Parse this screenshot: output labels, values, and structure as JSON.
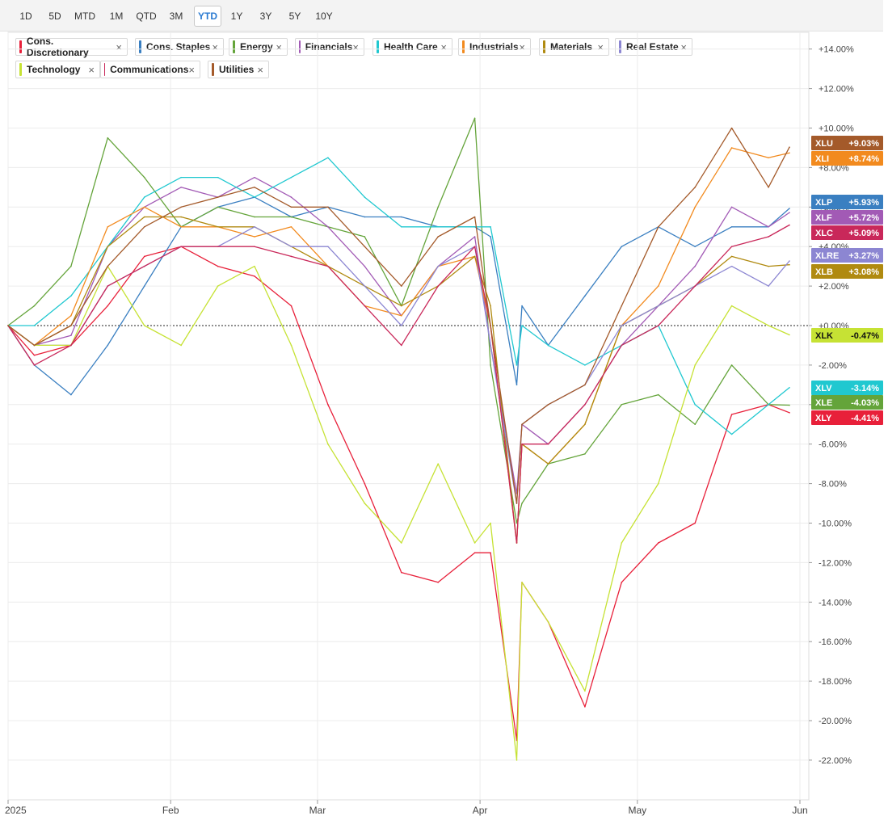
{
  "periods": [
    "1D",
    "5D",
    "MTD",
    "1M",
    "QTD",
    "3M",
    "YTD",
    "1Y",
    "3Y",
    "5Y",
    "10Y"
  ],
  "active_period": "YTD",
  "colors": {
    "XLY": "#e8203a",
    "XLP": "#3a7fc1",
    "XLE": "#64a43a",
    "XLF": "#a25ab5",
    "XLV": "#20c8d0",
    "XLI": "#f28a1e",
    "XLB": "#b08a10",
    "XLRE": "#8c86d2",
    "XLK": "#c6e234",
    "XLC": "#c9285a",
    "XLU": "#a45a2a"
  },
  "legend": [
    {
      "name": "Cons. Discretionary",
      "ticker": "XLY"
    },
    {
      "name": "Cons. Staples",
      "ticker": "XLP"
    },
    {
      "name": "Energy",
      "ticker": "XLE"
    },
    {
      "name": "Financials",
      "ticker": "XLF"
    },
    {
      "name": "Health Care",
      "ticker": "XLV"
    },
    {
      "name": "Industrials",
      "ticker": "XLI"
    },
    {
      "name": "Materials",
      "ticker": "XLB"
    },
    {
      "name": "Real Estate",
      "ticker": "XLRE"
    },
    {
      "name": "Technology",
      "ticker": "XLK"
    },
    {
      "name": "Communications",
      "ticker": "XLC"
    },
    {
      "name": "Utilities",
      "ticker": "XLU"
    }
  ],
  "legend_close_glyph": "×",
  "chart_data": {
    "type": "line",
    "title": "",
    "xlabel": "",
    "ylabel": "",
    "ylim": [
      -24,
      15
    ],
    "grid": true,
    "legend_position": "top-left",
    "y_ticks": [
      -22,
      -20,
      -18,
      -16,
      -14,
      -12,
      -10,
      -8,
      -6,
      -4,
      -2,
      0,
      2,
      4,
      6,
      8,
      10,
      12,
      14
    ],
    "y_tick_labels": [
      "-22.00%",
      "-20.00%",
      "-18.00%",
      "-16.00%",
      "-14.00%",
      "-12.00%",
      "-10.00%",
      "-8.00%",
      "-6.00%",
      "-4.00%",
      "-2.00%",
      "+0.00%",
      "+2.00%",
      "+4.00%",
      "+6.00%",
      "+8.00%",
      "+10.00%",
      "+12.00%",
      "+14.00%"
    ],
    "x_ticks": [
      {
        "date": "2025-01-01",
        "label": "2025"
      },
      {
        "date": "2025-02-01",
        "label": "Feb"
      },
      {
        "date": "2025-03-01",
        "label": "Mar"
      },
      {
        "date": "2025-04-01",
        "label": "Apr"
      },
      {
        "date": "2025-05-01",
        "label": "May"
      },
      {
        "date": "2025-06-01",
        "label": "Jun"
      }
    ],
    "x_range": [
      "2025-01-01",
      "2025-06-01"
    ],
    "dates": [
      "2025-01-01",
      "2025-01-06",
      "2025-01-13",
      "2025-01-20",
      "2025-01-27",
      "2025-02-03",
      "2025-02-10",
      "2025-02-17",
      "2025-02-24",
      "2025-03-03",
      "2025-03-10",
      "2025-03-17",
      "2025-03-24",
      "2025-03-31",
      "2025-04-03",
      "2025-04-08",
      "2025-04-09",
      "2025-04-14",
      "2025-04-21",
      "2025-04-28",
      "2025-05-05",
      "2025-05-12",
      "2025-05-19",
      "2025-05-26",
      "2025-05-30"
    ],
    "series": [
      {
        "ticker": "XLY",
        "name": "Cons. Discretionary",
        "values": [
          0,
          -1.5,
          -1,
          1,
          3.5,
          4,
          3,
          2.5,
          1,
          -4,
          -8,
          -12.5,
          -13,
          -11.5,
          -11.5,
          -21,
          -13,
          -15,
          -19.3,
          -13,
          -11,
          -10,
          -4.5,
          -4,
          -4.41
        ]
      },
      {
        "ticker": "XLP",
        "name": "Cons. Staples",
        "values": [
          0,
          -2,
          -3.5,
          -1,
          2,
          5,
          6,
          6.5,
          5.5,
          6,
          5.5,
          5.5,
          5,
          5,
          4.5,
          -3,
          1,
          -1,
          1.5,
          4,
          5,
          4,
          5,
          5,
          5.93
        ]
      },
      {
        "ticker": "XLE",
        "name": "Energy",
        "values": [
          0,
          1,
          3,
          9.5,
          7.5,
          5,
          6,
          5.5,
          5.5,
          5,
          4.5,
          1,
          6,
          10.5,
          -2,
          -10,
          -9,
          -7,
          -6.5,
          -4,
          -3.5,
          -5,
          -2,
          -4,
          -4.03
        ]
      },
      {
        "ticker": "XLF",
        "name": "Financials",
        "values": [
          0,
          -1,
          -0.5,
          4,
          6,
          7,
          6.5,
          7.5,
          6.5,
          5,
          3,
          0.5,
          3,
          4.5,
          -1,
          -8.5,
          -5,
          -6,
          -4,
          -1,
          1,
          3,
          6,
          5,
          5.72
        ]
      },
      {
        "ticker": "XLV",
        "name": "Health Care",
        "values": [
          0,
          0,
          1.5,
          4,
          6.5,
          7.5,
          7.5,
          6.5,
          7.5,
          8.5,
          6.5,
          5,
          5,
          5,
          5,
          -2,
          0,
          -1,
          -2,
          -1,
          0,
          -4,
          -5.5,
          -4,
          -3.14
        ]
      },
      {
        "ticker": "XLI",
        "name": "Industrials",
        "values": [
          0,
          -1,
          0.5,
          5,
          6,
          5,
          5,
          4.5,
          5,
          3,
          1,
          0.5,
          3,
          3.5,
          0,
          -11,
          -6,
          -7,
          -5,
          0,
          2,
          6,
          9,
          8.5,
          8.74
        ]
      },
      {
        "ticker": "XLB",
        "name": "Materials",
        "values": [
          0,
          -1,
          0,
          4,
          5.5,
          5.5,
          5,
          5,
          4,
          3,
          2,
          1,
          2,
          3.5,
          1,
          -11,
          -6,
          -7,
          -5,
          0,
          1,
          2,
          3.5,
          3,
          3.08
        ]
      },
      {
        "ticker": "XLRE",
        "name": "Real Estate",
        "values": [
          0,
          -1,
          -1,
          2,
          3,
          4,
          4,
          5,
          4,
          4,
          2,
          0,
          3,
          4,
          -1,
          -9,
          -5,
          -4,
          -3,
          0,
          1,
          2,
          3,
          2,
          3.27
        ]
      },
      {
        "ticker": "XLK",
        "name": "Technology",
        "values": [
          0,
          -1,
          -1,
          3,
          0,
          -1,
          2,
          3,
          -1,
          -6,
          -9,
          -11,
          -7,
          -11,
          -10,
          -22,
          -13,
          -15,
          -18.5,
          -11,
          -8,
          -2,
          1,
          0,
          -0.47
        ]
      },
      {
        "ticker": "XLC",
        "name": "Communications",
        "values": [
          0,
          -2,
          -1,
          2,
          3,
          4,
          4,
          4,
          3.5,
          3,
          1,
          -1,
          2,
          4,
          0,
          -11,
          -6,
          -6,
          -4,
          -1,
          0,
          2,
          4,
          4.5,
          5.09
        ]
      },
      {
        "ticker": "XLU",
        "name": "Utilities",
        "values": [
          0,
          -1,
          0,
          3,
          5,
          6,
          6.5,
          7,
          6,
          6,
          4,
          2,
          4.5,
          5.5,
          0,
          -9,
          -5,
          -4,
          -3,
          1,
          5,
          7,
          10,
          7,
          9.03
        ]
      }
    ],
    "end_labels": [
      {
        "ticker": "XLU",
        "text": "+9.03%",
        "value": 9.03
      },
      {
        "ticker": "XLI",
        "text": "+8.74%",
        "value": 8.74
      },
      {
        "ticker": "XLP",
        "text": "+5.93%",
        "value": 5.93
      },
      {
        "ticker": "XLF",
        "text": "+5.72%",
        "value": 5.72
      },
      {
        "ticker": "XLC",
        "text": "+5.09%",
        "value": 5.09
      },
      {
        "ticker": "XLRE",
        "text": "+3.27%",
        "value": 3.27
      },
      {
        "ticker": "XLB",
        "text": "+3.08%",
        "value": 3.08
      },
      {
        "ticker": "XLK",
        "text": "-0.47%",
        "value": -0.47
      },
      {
        "ticker": "XLV",
        "text": "-3.14%",
        "value": -3.14
      },
      {
        "ticker": "XLE",
        "text": "-4.03%",
        "value": -4.03
      },
      {
        "ticker": "XLY",
        "text": "-4.41%",
        "value": -4.41
      }
    ]
  }
}
